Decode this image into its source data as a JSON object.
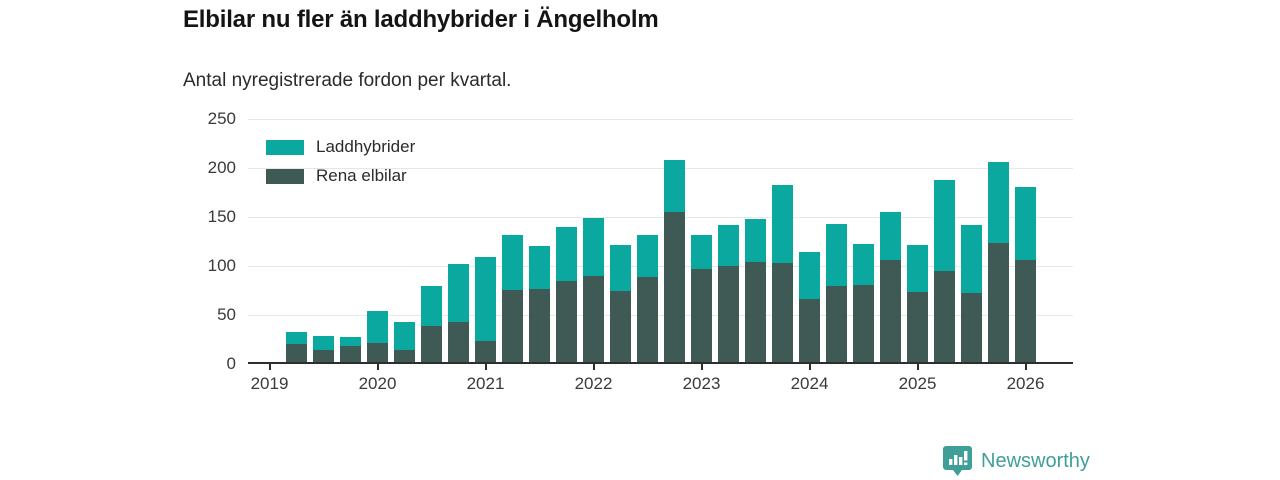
{
  "header": {
    "title": "Elbilar nu fler än laddhybrider i Ängelholm",
    "subtitle": "Antal nyregistrerade fordon per kvartal."
  },
  "legend": [
    {
      "label": "Laddhybrider",
      "color": "#0ba8a0"
    },
    {
      "label": "Rena elbilar",
      "color": "#3f5a54"
    }
  ],
  "footer": {
    "brand": "Newsworthy",
    "logo_icon": "newsworthy-pin-barchart-icon",
    "brand_color": "#3f9f98"
  },
  "colors": {
    "laddhybrider": "#0ba8a0",
    "rena_elbilar": "#3f5a54",
    "grid": "#e7e7e7",
    "axis": "#2e2e2e",
    "text": "#2b2b2b"
  },
  "chart_data": {
    "type": "bar",
    "stacked": true,
    "title": "Elbilar nu fler än laddhybrider i Ängelholm",
    "subtitle": "Antal nyregistrerade fordon per kvartal.",
    "xlabel": "",
    "ylabel": "",
    "ylim": [
      0,
      250
    ],
    "yticks": [
      0,
      50,
      100,
      150,
      200,
      250
    ],
    "grid": true,
    "legend_position": "top-left",
    "categories": [
      "2019 Q2",
      "2019 Q3",
      "2019 Q4",
      "2020 Q1",
      "2020 Q2",
      "2020 Q3",
      "2020 Q4",
      "2021 Q1",
      "2021 Q2",
      "2021 Q3",
      "2021 Q4",
      "2022 Q1",
      "2022 Q2",
      "2022 Q3",
      "2022 Q4",
      "2023 Q1",
      "2023 Q2",
      "2023 Q3",
      "2023 Q4",
      "2024 Q1",
      "2024 Q2",
      "2024 Q3",
      "2024 Q4",
      "2025 Q1",
      "2025 Q2",
      "2025 Q3",
      "2025 Q4",
      "2026 Q1"
    ],
    "series": [
      {
        "name": "Rena elbilar",
        "color": "#3f5a54",
        "values": [
          18,
          12,
          16,
          19,
          12,
          37,
          41,
          21,
          73,
          74,
          83,
          88,
          72,
          87,
          153,
          95,
          98,
          102,
          101,
          64,
          78,
          79,
          104,
          71,
          93,
          70,
          121,
          104
        ]
      },
      {
        "name": "Laddhybrider",
        "color": "#0ba8a0",
        "values": [
          13,
          15,
          10,
          33,
          29,
          41,
          59,
          86,
          57,
          44,
          55,
          59,
          47,
          43,
          53,
          35,
          42,
          44,
          80,
          48,
          63,
          41,
          49,
          48,
          93,
          70,
          83,
          75
        ]
      }
    ],
    "totals": [
      31,
      27,
      26,
      52,
      41,
      78,
      100,
      107,
      130,
      118,
      138,
      147,
      119,
      130,
      206,
      130,
      140,
      146,
      181,
      112,
      141,
      120,
      153,
      119,
      186,
      140,
      204,
      179
    ],
    "x_tick_labels": [
      "2019",
      "2020",
      "2021",
      "2022",
      "2023",
      "2024",
      "2025",
      "2026"
    ]
  }
}
